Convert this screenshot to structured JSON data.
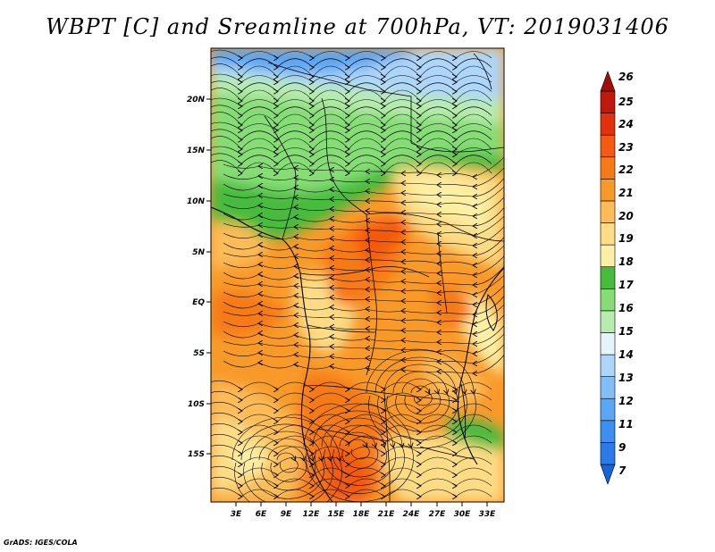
{
  "title": "WBPT [C] and Sreamline at 700hPa, VT: 2019031406",
  "credit": "GrADS: IGES/COLA",
  "map": {
    "lat_labels": [
      "20N",
      "15N",
      "10N",
      "5N",
      "EQ",
      "5S",
      "10S",
      "15S"
    ],
    "lon_labels": [
      "3E",
      "6E",
      "9E",
      "12E",
      "15E",
      "18E",
      "21E",
      "24E",
      "27E",
      "30E",
      "33E"
    ]
  },
  "colorbar": {
    "labels": [
      "7",
      "9",
      "11",
      "12",
      "13",
      "14",
      "15",
      "16",
      "17",
      "18",
      "19",
      "20",
      "21",
      "22",
      "23",
      "24",
      "25",
      "26"
    ],
    "colors": [
      "#1565d8",
      "#2a7ae8",
      "#3d8ff0",
      "#5aa6f5",
      "#82bff8",
      "#aed6fb",
      "#e4f4fb",
      "#b8ecae",
      "#86dd76",
      "#46bb3c",
      "#fdf0a6",
      "#fddc85",
      "#fcbc58",
      "#f89a2a",
      "#f67a18",
      "#f45a10",
      "#e0330c",
      "#c0180a",
      "#a30c08"
    ]
  }
}
